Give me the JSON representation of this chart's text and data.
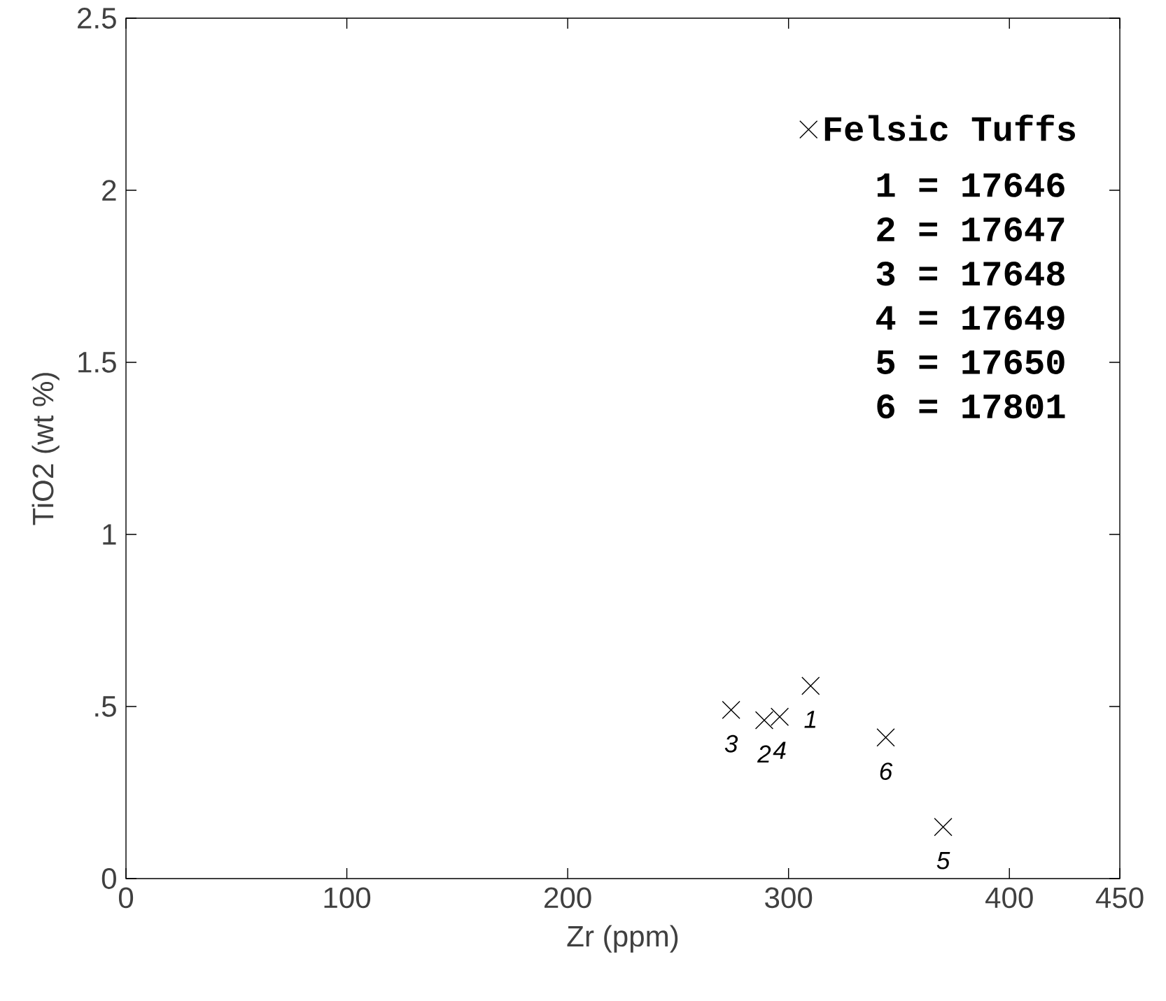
{
  "chart_data": {
    "type": "scatter",
    "xlabel": "Zr (ppm)",
    "ylabel": "TiO2 (wt %)",
    "series": [
      {
        "name": "Felsic Tuffs",
        "color": "#000000",
        "x": [
          310,
          289,
          274,
          296,
          370,
          344
        ],
        "values": [
          0.56,
          0.46,
          0.49,
          0.47,
          0.15,
          0.41
        ]
      }
    ],
    "marker": "cross",
    "legend": "top right",
    "xlim": [
      0,
      450
    ],
    "xticks": [
      0,
      100,
      200,
      300,
      400,
      450
    ],
    "ylim": [
      0,
      2.5
    ],
    "yticks": [
      0,
      {
        "value": 0.5,
        "label": ".5"
      },
      1,
      1.5,
      2,
      2.5
    ],
    "annotations": [
      {
        "text": "1",
        "x": 310,
        "y": 0.56
      },
      {
        "text": "2",
        "x": 289,
        "y": 0.46
      },
      {
        "text": "3",
        "x": 274,
        "y": 0.49
      },
      {
        "text": "4",
        "x": 296,
        "y": 0.47
      },
      {
        "text": "5",
        "x": 370,
        "y": 0.15
      },
      {
        "text": "6",
        "x": 344,
        "y": 0.41
      },
      "1 = 17646",
      "2 = 17647",
      "3 = 17648",
      "4 = 17649",
      "5 = 17650",
      "6 = 17801"
    ]
  }
}
